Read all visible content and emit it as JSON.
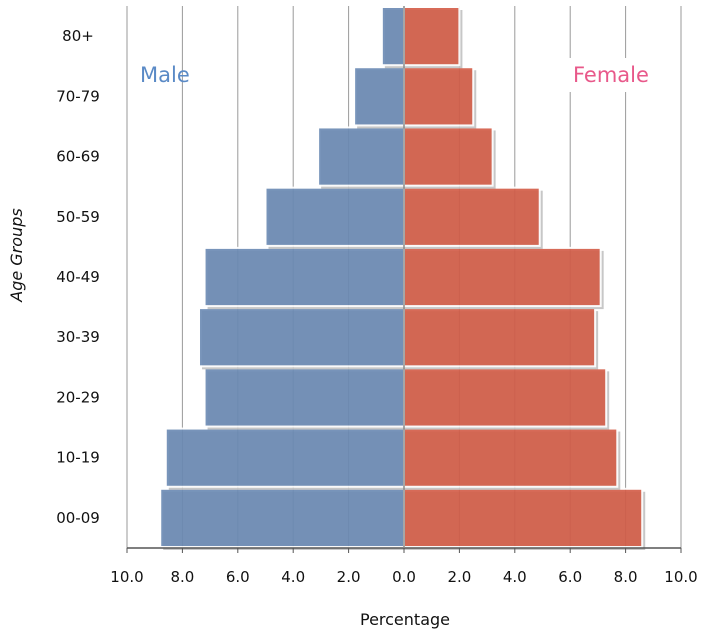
{
  "chart_data": {
    "type": "bar",
    "orientation": "horizontal",
    "layout": "population-pyramid",
    "categories": [
      "00-09",
      "10-19",
      "20-29",
      "30-39",
      "40-49",
      "50-59",
      "60-69",
      "70-79",
      "80+"
    ],
    "series": [
      {
        "name": "Male",
        "side": "left",
        "color": "#6d8cb5",
        "values": [
          8.8,
          8.6,
          7.2,
          7.4,
          7.2,
          5.0,
          3.1,
          1.8,
          0.8
        ]
      },
      {
        "name": "Female",
        "side": "right",
        "color": "#d45f4a",
        "values": [
          8.6,
          7.7,
          7.3,
          6.9,
          7.1,
          4.9,
          3.2,
          2.5,
          2.0
        ]
      }
    ],
    "xlabel": "Percentage",
    "ylabel": "Age Groups",
    "x_ticks": [
      "10.0",
      "8.0",
      "6.0",
      "4.0",
      "2.0",
      "0.0",
      "2.0",
      "4.0",
      "6.0",
      "8.0",
      "10.0"
    ],
    "xlim": [
      -10,
      10
    ],
    "grid": "vertical",
    "legend": {
      "male_label": "Male",
      "male_color": "#5a8ac6",
      "male_position": "top-left",
      "female_label": "Female",
      "female_color": "#e8588a",
      "female_position": "top-right"
    }
  }
}
